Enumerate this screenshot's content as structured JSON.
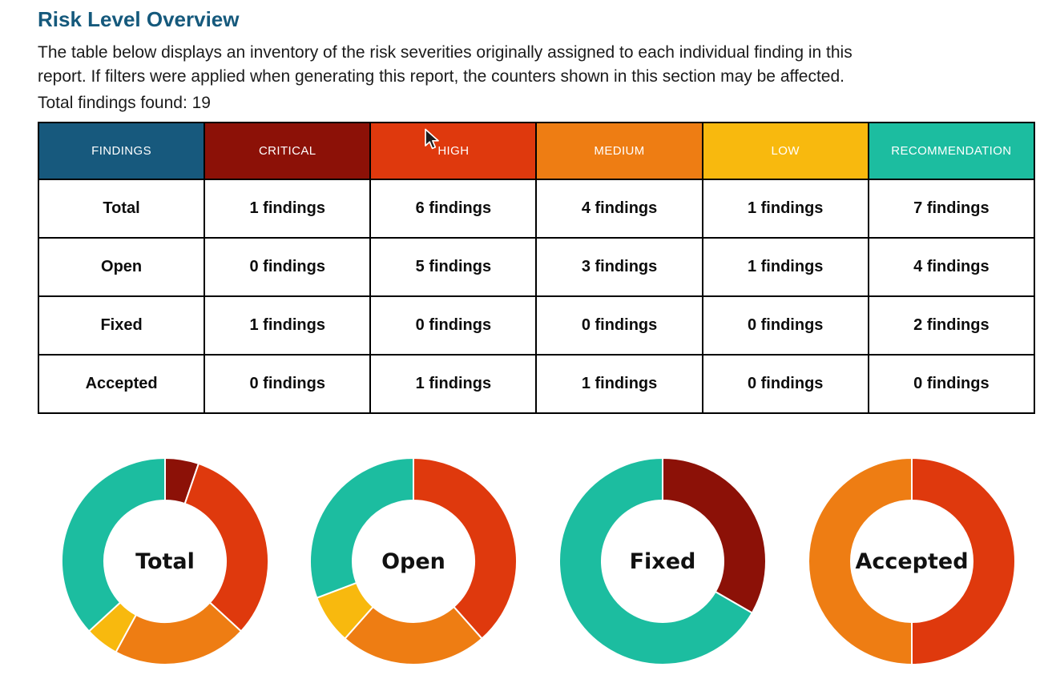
{
  "title": "Risk Level Overview",
  "intro": {
    "line1": "The table below displays an inventory of the risk severities originally assigned to each individual finding in this",
    "line2": "report. If filters were applied when generating this report, the counters shown in this section may be affected."
  },
  "total_line": "Total findings found: 19",
  "colors": {
    "title_blue": "#15597C",
    "critical": "#8C1107",
    "high": "#DF390D",
    "medium": "#EE7D13",
    "low": "#F8B90E",
    "recommendation": "#1CBDA0",
    "findings_header": "#17597D",
    "table_border": "#000000",
    "chart_wedge_separator": "#FFFFFF"
  },
  "icons": {
    "cursor": "arrow-cursor-icon"
  },
  "table": {
    "headers": [
      {
        "key": "findings",
        "label": "FINDINGS",
        "color": "#17597D"
      },
      {
        "key": "critical",
        "label": "CRITICAL",
        "color": "#8C1107"
      },
      {
        "key": "high",
        "label": "HIGH",
        "color": "#DF390D"
      },
      {
        "key": "medium",
        "label": "MEDIUM",
        "color": "#EE7D13"
      },
      {
        "key": "low",
        "label": "LOW",
        "color": "#F8B90E"
      },
      {
        "key": "recommendation",
        "label": "RECOMMENDATION",
        "color": "#1CBDA0"
      }
    ],
    "rows": [
      {
        "key": "total",
        "label": "Total",
        "values": [
          "1 findings",
          "6 findings",
          "4 findings",
          "1 findings",
          "7 findings"
        ]
      },
      {
        "key": "open",
        "label": "Open",
        "values": [
          "0 findings",
          "5 findings",
          "3 findings",
          "1 findings",
          "4 findings"
        ]
      },
      {
        "key": "fixed",
        "label": "Fixed",
        "values": [
          "1 findings",
          "0 findings",
          "0 findings",
          "0 findings",
          "2 findings"
        ]
      },
      {
        "key": "accepted",
        "label": "Accepted",
        "values": [
          "0 findings",
          "1 findings",
          "1 findings",
          "0 findings",
          "0 findings"
        ]
      }
    ]
  },
  "chart_data": [
    {
      "type": "pie",
      "subtype": "donut",
      "title": "Total",
      "labels": [
        "Critical",
        "High",
        "Medium",
        "Low",
        "Recommendation"
      ],
      "values": [
        1,
        6,
        4,
        1,
        7
      ],
      "colors": [
        "#8C1107",
        "#DF390D",
        "#EE7D13",
        "#F8B90E",
        "#1CBDA0"
      ],
      "start_angle": "top",
      "direction": "clockwise"
    },
    {
      "type": "pie",
      "subtype": "donut",
      "title": "Open",
      "labels": [
        "Critical",
        "High",
        "Medium",
        "Low",
        "Recommendation"
      ],
      "values": [
        0,
        5,
        3,
        1,
        4
      ],
      "colors": [
        "#8C1107",
        "#DF390D",
        "#EE7D13",
        "#F8B90E",
        "#1CBDA0"
      ],
      "start_angle": "top",
      "direction": "clockwise"
    },
    {
      "type": "pie",
      "subtype": "donut",
      "title": "Fixed",
      "labels": [
        "Critical",
        "High",
        "Medium",
        "Low",
        "Recommendation"
      ],
      "values": [
        1,
        0,
        0,
        0,
        2
      ],
      "colors": [
        "#8C1107",
        "#DF390D",
        "#EE7D13",
        "#F8B90E",
        "#1CBDA0"
      ],
      "start_angle": "top",
      "direction": "clockwise"
    },
    {
      "type": "pie",
      "subtype": "donut",
      "title": "Accepted",
      "labels": [
        "Critical",
        "High",
        "Medium",
        "Low",
        "Recommendation"
      ],
      "values": [
        0,
        1,
        1,
        0,
        0
      ],
      "colors": [
        "#8C1107",
        "#DF390D",
        "#EE7D13",
        "#F8B90E",
        "#1CBDA0"
      ],
      "start_angle": "top",
      "direction": "clockwise"
    }
  ]
}
